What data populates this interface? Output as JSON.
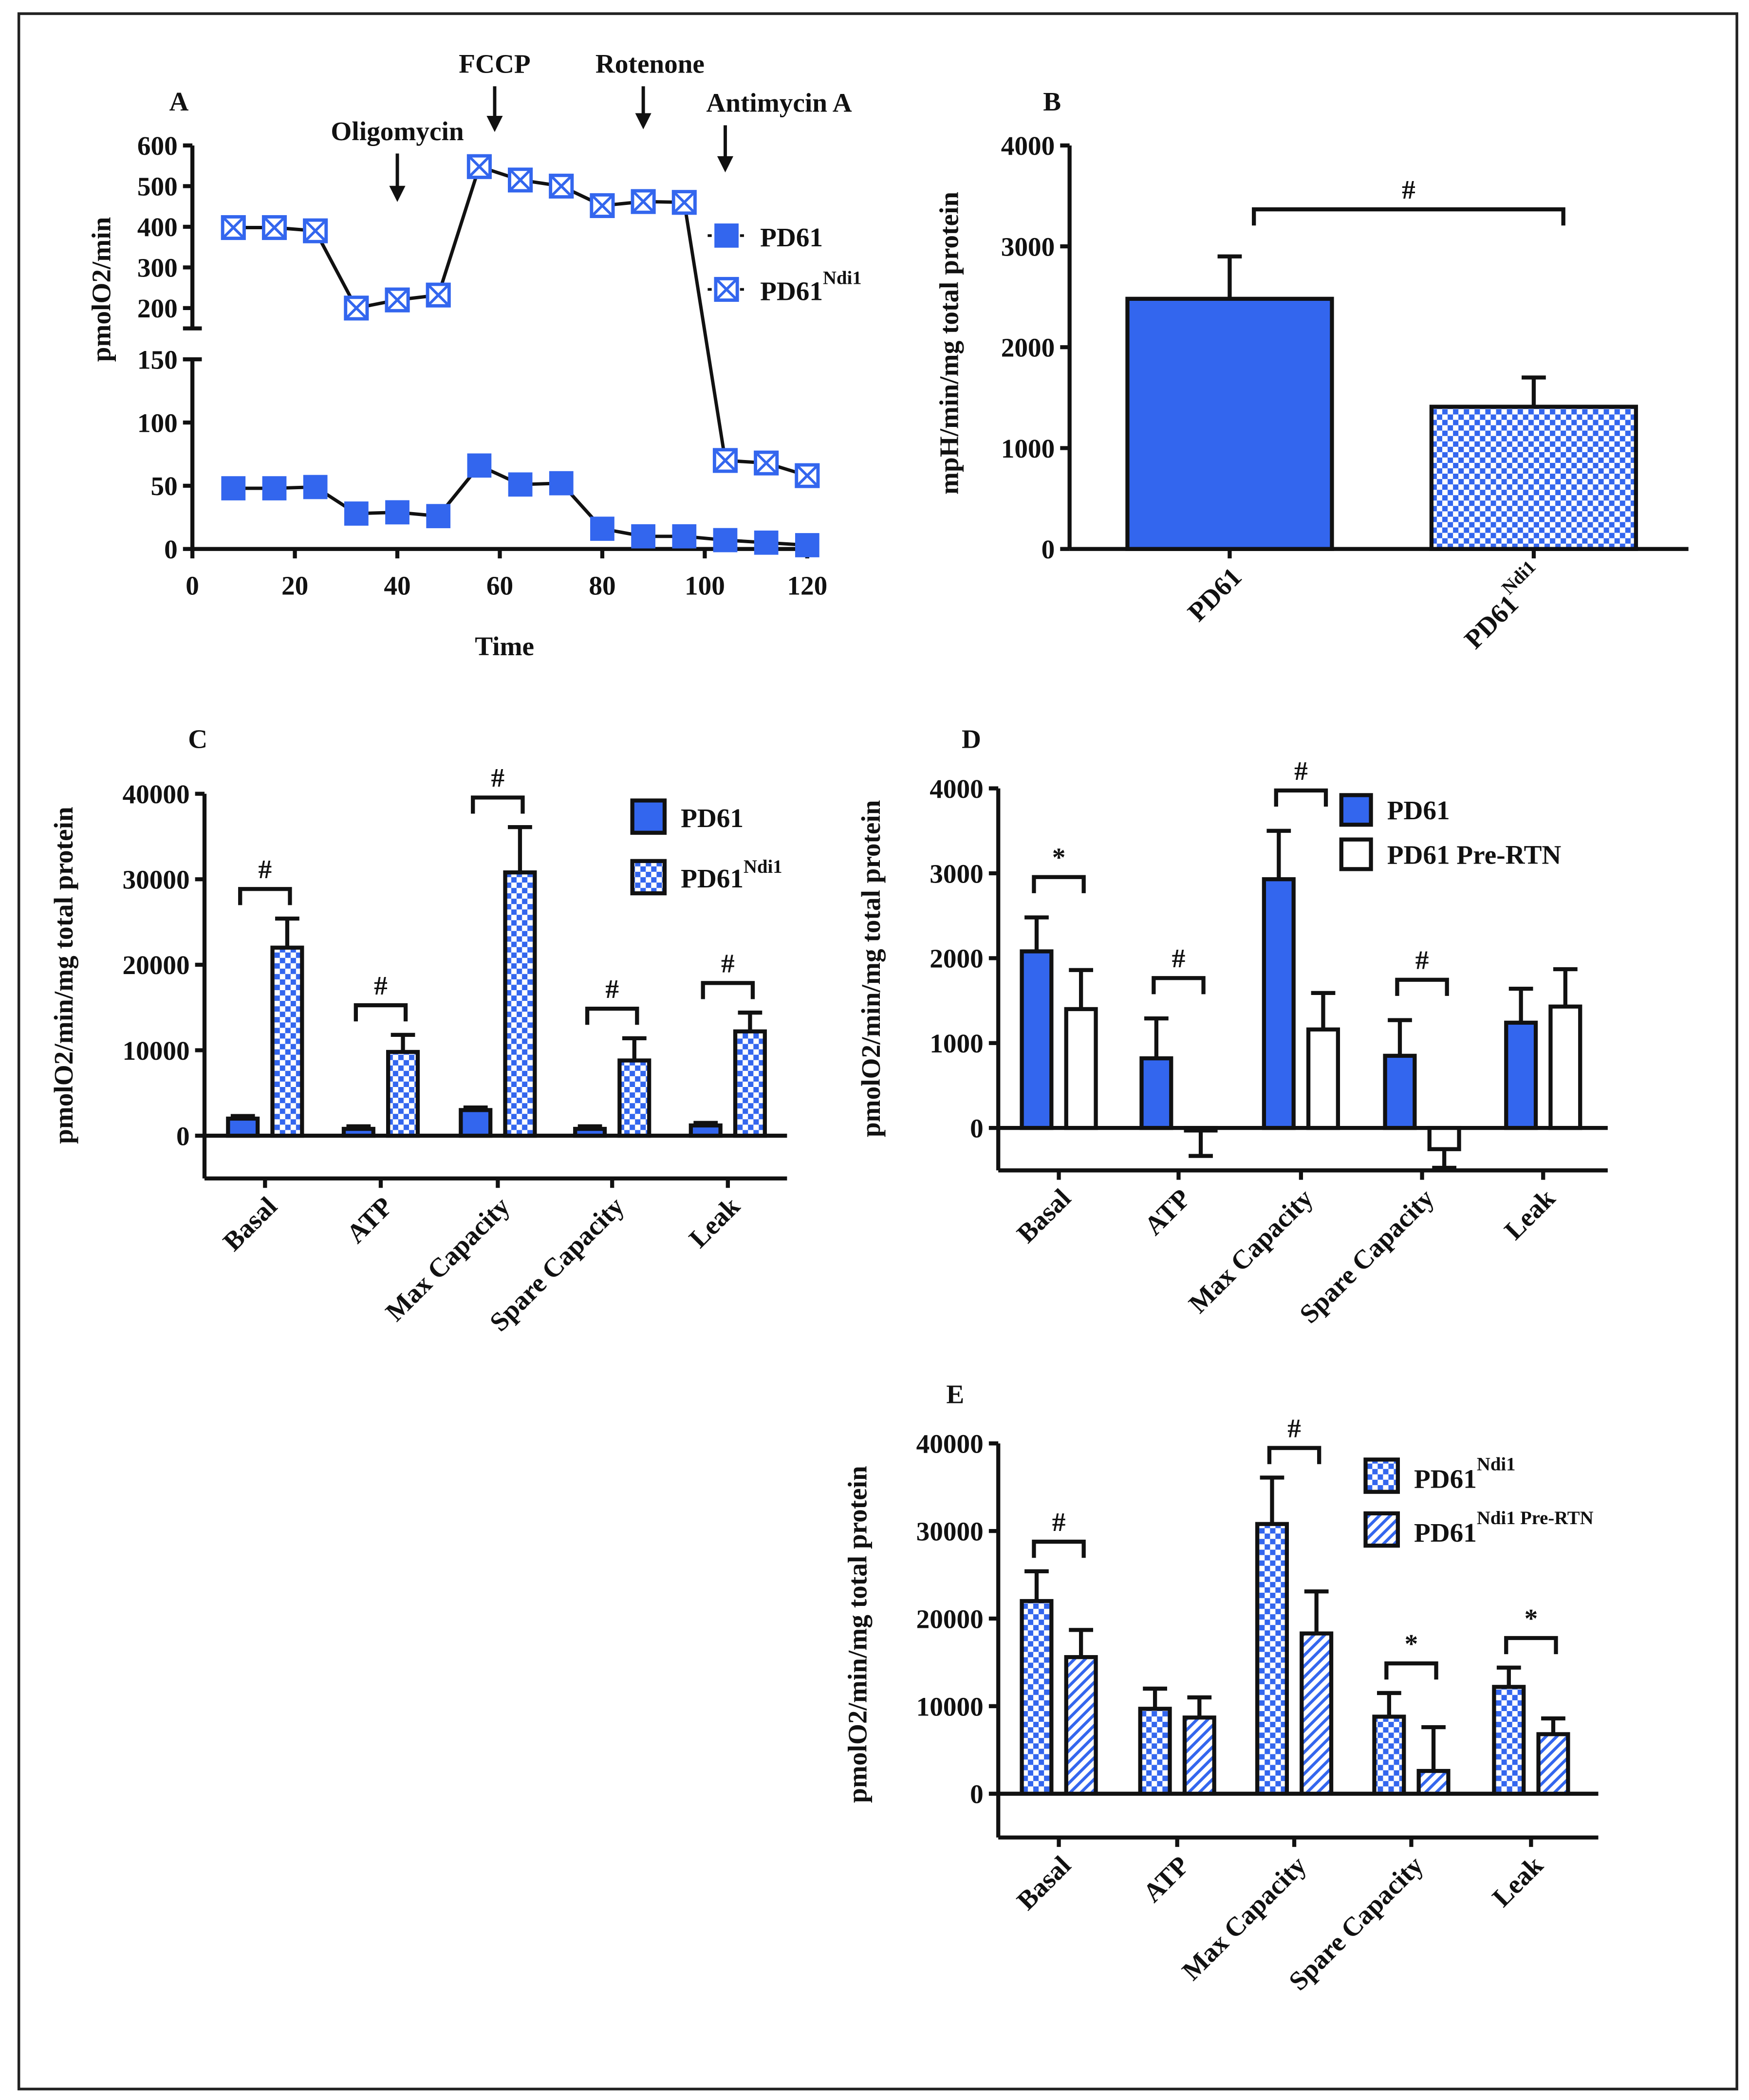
{
  "chart_data": [
    {
      "type": "line",
      "panel": "A",
      "xlabel": "Time",
      "ylabel": "pmolO2/min",
      "x": [
        8,
        16,
        24,
        32,
        40,
        48,
        56,
        64,
        72,
        80,
        88,
        96,
        104,
        112,
        120
      ],
      "xlim": [
        0,
        120
      ],
      "xticks": [
        0,
        20,
        40,
        60,
        80,
        100,
        120
      ],
      "ylim": [
        0,
        150
      ],
      "yticks": [
        0,
        50,
        100,
        150
      ],
      "y_break": {
        "ylim": [
          150,
          600
        ],
        "yticks": [
          200,
          300,
          400,
          500,
          600
        ]
      },
      "annotations": [
        {
          "text": "Oligomycin",
          "x": 40
        },
        {
          "text": "FCCP",
          "x": 59
        },
        {
          "text": "Rotenone",
          "x": 88
        },
        {
          "text": "Antimycin A",
          "x": 104
        }
      ],
      "series": [
        {
          "name": "PD61",
          "color": "#3366ee",
          "marker": "square",
          "values": [
            48,
            48,
            49,
            28,
            29,
            26,
            66,
            51,
            52,
            16,
            10,
            10,
            7,
            5,
            3
          ]
        },
        {
          "name": {
            "text": "PD61",
            "sup": "Ndi1"
          },
          "color": "#3366ee",
          "marker": "crossed-square",
          "values": [
            398,
            398,
            390,
            200,
            220,
            232,
            548,
            515,
            500,
            452,
            462,
            460,
            70,
            68,
            58
          ]
        }
      ]
    },
    {
      "type": "bar",
      "panel": "B",
      "ylabel": "mpH/min/mg total protein",
      "categories": [
        "PD61",
        {
          "text": "PD61",
          "sup": "Ndi1"
        }
      ],
      "values": [
        2480,
        1410
      ],
      "errors": [
        420,
        290
      ],
      "patterns": [
        "solid",
        "checker"
      ],
      "color": "#3366ee",
      "ylim": [
        0,
        4000
      ],
      "yticks": [
        0,
        1000,
        2000,
        3000,
        4000
      ],
      "significance": "#"
    },
    {
      "type": "grouped_bar",
      "panel": "C",
      "ylabel": "pmolO2/min/mg total protein",
      "categories": [
        "Basal",
        "ATP",
        "Max Capacity",
        "Spare Capacity",
        "Leak"
      ],
      "ylim": [
        -5000,
        40000
      ],
      "yticks": [
        0,
        10000,
        20000,
        30000,
        40000
      ],
      "series": [
        {
          "name": "PD61",
          "color": "#3366ee",
          "pattern": "solid",
          "values": [
            2000,
            800,
            3000,
            800,
            1200
          ],
          "errors": [
            300,
            300,
            300,
            300,
            300
          ]
        },
        {
          "name": {
            "text": "PD61",
            "sup": "Ndi1"
          },
          "color": "#3366ee",
          "pattern": "checker",
          "values": [
            22000,
            9800,
            30800,
            8800,
            12200
          ],
          "errors": [
            3400,
            2000,
            5300,
            2600,
            2200
          ]
        }
      ],
      "significance": [
        "#",
        "#",
        "#",
        "#",
        "#"
      ]
    },
    {
      "type": "grouped_bar",
      "panel": "D",
      "ylabel": "pmolO2/min/mg total protein",
      "categories": [
        "Basal",
        "ATP",
        "Max Capacity",
        "Spare Capacity",
        "Leak"
      ],
      "ylim": [
        -500,
        4000
      ],
      "yticks": [
        0,
        1000,
        2000,
        3000,
        4000
      ],
      "series": [
        {
          "name": "PD61",
          "color": "#3366ee",
          "pattern": "solid",
          "values": [
            2080,
            820,
            2930,
            850,
            1240
          ],
          "errors": [
            400,
            470,
            570,
            420,
            400
          ]
        },
        {
          "name": "PD61 Pre-RTN",
          "color": "#ffffff",
          "pattern": "solid",
          "values": [
            1400,
            -30,
            1160,
            -250,
            1430
          ],
          "errors": [
            460,
            300,
            430,
            220,
            440
          ]
        }
      ],
      "significance": [
        "*",
        "#",
        "#",
        "#",
        null
      ]
    },
    {
      "type": "grouped_bar",
      "panel": "E",
      "ylabel": "pmolO2/min/mg total protein",
      "categories": [
        "Basal",
        "ATP",
        "Max Capacity",
        "Spare Capacity",
        "Leak"
      ],
      "ylim": [
        -5000,
        40000
      ],
      "yticks": [
        0,
        10000,
        20000,
        30000,
        40000
      ],
      "series": [
        {
          "name": {
            "text": "PD61",
            "sup": "Ndi1"
          },
          "color": "#3366ee",
          "pattern": "checker",
          "values": [
            22000,
            9700,
            30800,
            8800,
            12200
          ],
          "errors": [
            3400,
            2300,
            5300,
            2700,
            2200
          ]
        },
        {
          "name": {
            "text": "PD61",
            "sup": "Ndi1 Pre-RTN"
          },
          "color": "#3366ee",
          "pattern": "hatch",
          "values": [
            15600,
            8700,
            18300,
            2600,
            6800
          ],
          "errors": [
            3100,
            2300,
            4800,
            5000,
            1800
          ]
        }
      ],
      "significance": [
        "#",
        null,
        "#",
        "*",
        "*"
      ]
    }
  ]
}
